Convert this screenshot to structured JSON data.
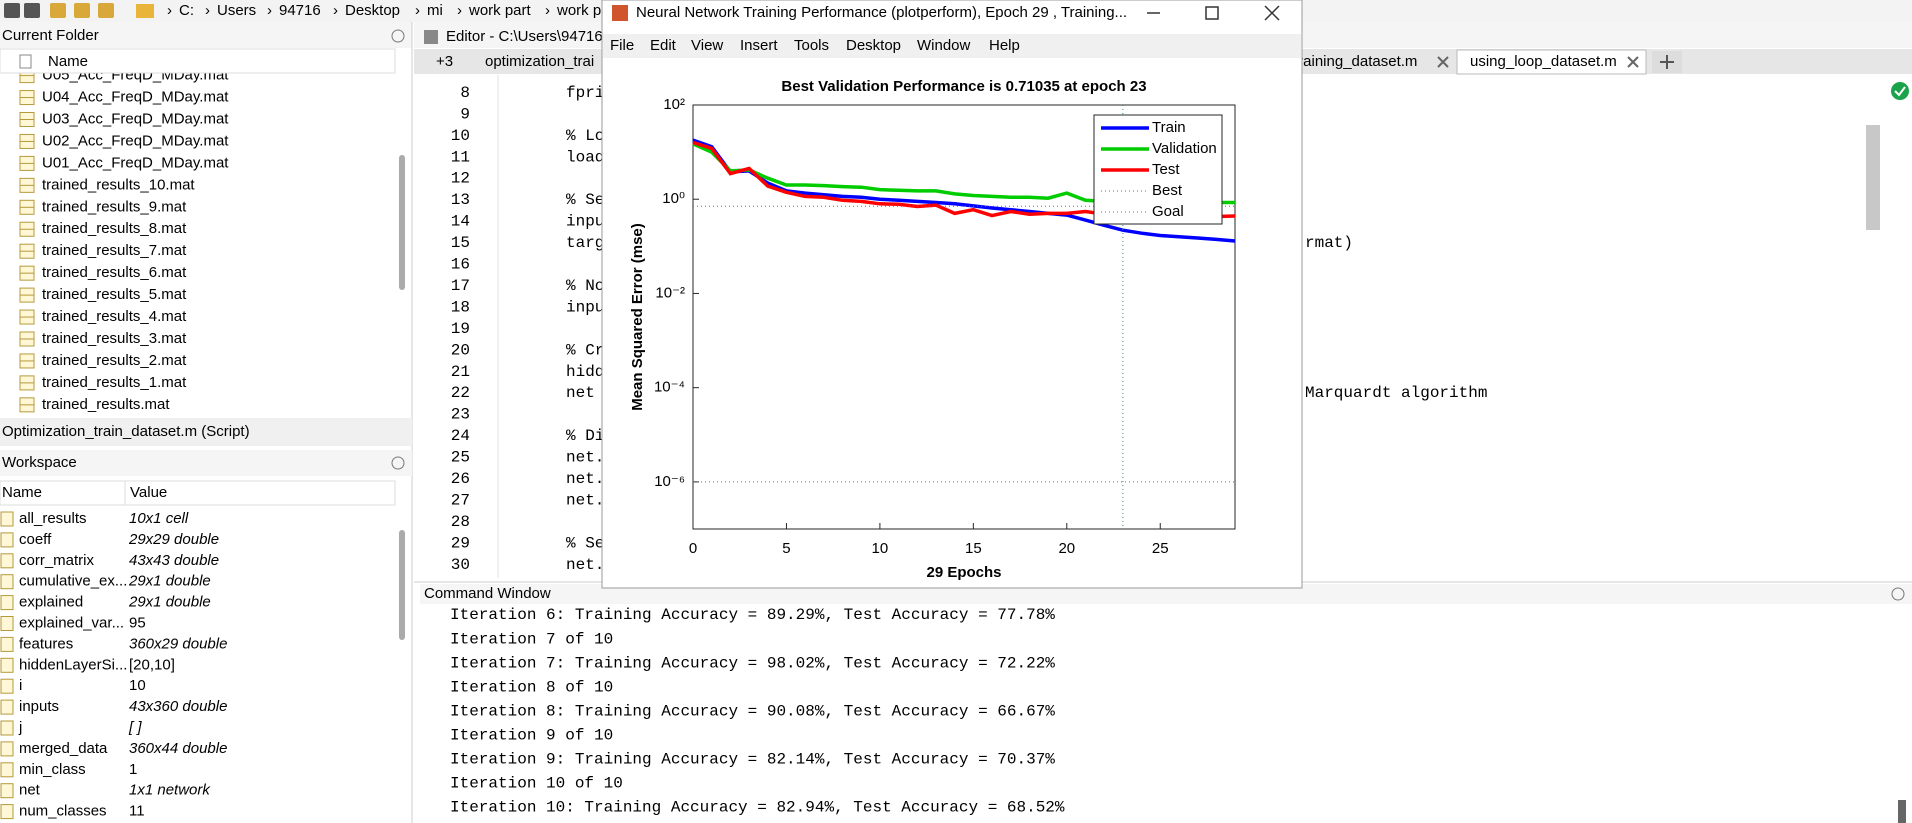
{
  "toolbar": {
    "path": [
      "C:",
      "Users",
      "94716",
      "Desktop",
      "mi",
      "work part",
      "work p"
    ]
  },
  "current_folder": {
    "title": "Current Folder",
    "column": "Name",
    "files": [
      "U05_Acc_FreqD_MDay.mat",
      "U04_Acc_FreqD_MDay.mat",
      "U03_Acc_FreqD_MDay.mat",
      "U02_Acc_FreqD_MDay.mat",
      "U01_Acc_FreqD_MDay.mat",
      "trained_results_10.mat",
      "trained_results_9.mat",
      "trained_results_8.mat",
      "trained_results_7.mat",
      "trained_results_6.mat",
      "trained_results_5.mat",
      "trained_results_4.mat",
      "trained_results_3.mat",
      "trained_results_2.mat",
      "trained_results_1.mat",
      "trained_results.mat"
    ]
  },
  "script_bar": "Optimization_train_dataset.m  (Script)",
  "workspace": {
    "title": "Workspace",
    "columns": [
      "Name",
      "Value"
    ],
    "rows": [
      {
        "name": "all_results",
        "value": "10x1 cell",
        "color": "#2a5db0"
      },
      {
        "name": "coeff",
        "value": "29x29 double",
        "color": "#2a5db0"
      },
      {
        "name": "corr_matrix",
        "value": "43x43 double",
        "color": "#2a5db0"
      },
      {
        "name": "cumulative_ex...",
        "value": "29x1 double",
        "color": "#2a5db0"
      },
      {
        "name": "explained",
        "value": "29x1 double",
        "color": "#2a5db0"
      },
      {
        "name": "explained_var...",
        "value": 95,
        "color": "#000000"
      },
      {
        "name": "features",
        "value": "360x29 double",
        "color": "#2a5db0"
      },
      {
        "name": "hiddenLayerSi...",
        "value": "[20,10]",
        "color": "#000000"
      },
      {
        "name": "i",
        "value": 10,
        "color": "#000000"
      },
      {
        "name": "inputs",
        "value": "43x360 double",
        "color": "#2a5db0"
      },
      {
        "name": "j",
        "value": "[ ]",
        "color": "#2a5db0"
      },
      {
        "name": "merged_data",
        "value": "360x44 double",
        "color": "#2a5db0"
      },
      {
        "name": "min_class",
        "value": 1,
        "color": "#000000"
      },
      {
        "name": "net",
        "value": "1x1 network",
        "color": "#2a5db0"
      },
      {
        "name": "num_classes",
        "value": 11,
        "color": "#000000"
      }
    ]
  },
  "editor": {
    "title": "Editor - C:\\Users\\94716",
    "tabs": [
      "+3",
      "optimization_trai",
      "training_dataset.m",
      "using_loop_dataset.m"
    ],
    "lines": [
      {
        "n": 8,
        "code": "fprin",
        "color": "#000000"
      },
      {
        "n": 9
      },
      {
        "n": 10,
        "code": "% Lo",
        "color": "#028009"
      },
      {
        "n": 11,
        "code": "load",
        "color": "#000000"
      },
      {
        "n": 12
      },
      {
        "n": 13,
        "code": "% Se",
        "color": "#028009"
      },
      {
        "n": 14,
        "code": "inpu",
        "color": "#000000"
      },
      {
        "n": 15,
        "code": "targ",
        "color": "#000000",
        "right": "rmat)"
      },
      {
        "n": 16
      },
      {
        "n": 17,
        "code": "% No",
        "color": "#028009"
      },
      {
        "n": 18,
        "code": "inpu",
        "color": "#000000"
      },
      {
        "n": 19
      },
      {
        "n": 20,
        "code": "% Cr",
        "color": "#028009"
      },
      {
        "n": 21,
        "code": "hidd",
        "color": "#000000"
      },
      {
        "n": 22,
        "code": "net ",
        "color": "#000000",
        "right": "Marquardt algorithm"
      },
      {
        "n": 23
      },
      {
        "n": 24,
        "code": "% Di",
        "color": "#028009"
      },
      {
        "n": 25,
        "code": "net.",
        "color": "#000000"
      },
      {
        "n": 26,
        "code": "net.",
        "color": "#000000"
      },
      {
        "n": 27,
        "code": "net.",
        "color": "#000000"
      },
      {
        "n": 28
      },
      {
        "n": 29,
        "code": "% Se",
        "color": "#028009"
      },
      {
        "n": 30,
        "code": "net.",
        "color": "#000000"
      }
    ]
  },
  "command_window": {
    "title": "Command Window",
    "lines": [
      "Iteration 6: Training Accuracy = 89.29%, Test Accuracy = 77.78%",
      "Iteration 7 of 10",
      "Iteration 7: Training Accuracy = 98.02%, Test Accuracy = 72.22%",
      "Iteration 8 of 10",
      "Iteration 8: Training Accuracy = 90.08%, Test Accuracy = 66.67%",
      "Iteration 9 of 10",
      "Iteration 9: Training Accuracy = 82.14%, Test Accuracy = 70.37%",
      "Iteration 10 of 10",
      "Iteration 10: Training Accuracy = 82.94%, Test Accuracy = 68.52%"
    ]
  },
  "figure": {
    "title": "Neural Network Training Performance (plotperform), Epoch 29 , Training...",
    "menu": [
      "File",
      "Edit",
      "View",
      "Insert",
      "Tools",
      "Desktop",
      "Window",
      "Help"
    ]
  },
  "chart_data": {
    "type": "line",
    "title": "Best Validation Performance is 0.71035 at epoch 23",
    "xlabel": "29 Epochs",
    "ylabel": "Mean Squared Error  (mse)",
    "x": [
      0,
      1,
      2,
      3,
      4,
      5,
      6,
      7,
      8,
      9,
      10,
      11,
      12,
      13,
      14,
      15,
      16,
      17,
      18,
      19,
      20,
      21,
      22,
      23,
      24,
      25,
      26,
      27,
      28,
      29
    ],
    "series": [
      {
        "name": "Train",
        "color": "#0000ff",
        "values": [
          18,
          13,
          3.8,
          4.0,
          2.2,
          1.5,
          1.35,
          1.25,
          1.15,
          1.1,
          1.0,
          0.95,
          0.9,
          0.85,
          0.8,
          0.72,
          0.65,
          0.6,
          0.55,
          0.5,
          0.46,
          0.36,
          0.28,
          0.22,
          0.19,
          0.17,
          0.16,
          0.15,
          0.14,
          0.13
        ]
      },
      {
        "name": "Validation",
        "color": "#00cc00",
        "values": [
          15,
          10,
          4,
          4.2,
          2.8,
          2,
          2,
          1.95,
          1.85,
          1.8,
          1.6,
          1.55,
          1.5,
          1.5,
          1.3,
          1.2,
          1.15,
          1.1,
          1.1,
          1.05,
          1.35,
          0.95,
          0.9,
          0.71,
          0.8,
          0.82,
          0.84,
          0.85,
          0.85,
          0.85
        ]
      },
      {
        "name": "Test",
        "color": "#ff0000",
        "values": [
          16,
          12,
          3.5,
          4.5,
          1.9,
          1.4,
          1.15,
          1.1,
          0.95,
          0.9,
          0.8,
          0.78,
          0.7,
          0.75,
          0.5,
          0.6,
          0.45,
          0.55,
          0.48,
          0.5,
          0.5,
          0.55,
          0.48,
          0.42,
          0.38,
          0.39,
          0.4,
          0.42,
          0.43,
          0.44
        ]
      }
    ],
    "best": {
      "name": "Best",
      "x": 23,
      "y": 0.71035,
      "color": "#2e8b8b"
    },
    "goal": {
      "name": "Goal",
      "value": 1e-06,
      "color": "#2e8b8b"
    },
    "xlim": [
      0,
      29
    ],
    "ylim": [
      1e-07,
      100
    ],
    "yscale": "log",
    "xticks": [
      0,
      5,
      10,
      15,
      20,
      25
    ],
    "yticks": [
      {
        "value": 100,
        "label": "10²"
      },
      {
        "value": 1,
        "label": "10⁰"
      },
      {
        "value": 0.01,
        "label": "10⁻²"
      },
      {
        "value": 0.0001,
        "label": "10⁻⁴"
      },
      {
        "value": 1e-06,
        "label": "10⁻⁶"
      }
    ],
    "legend": "upper right",
    "grid": false
  }
}
